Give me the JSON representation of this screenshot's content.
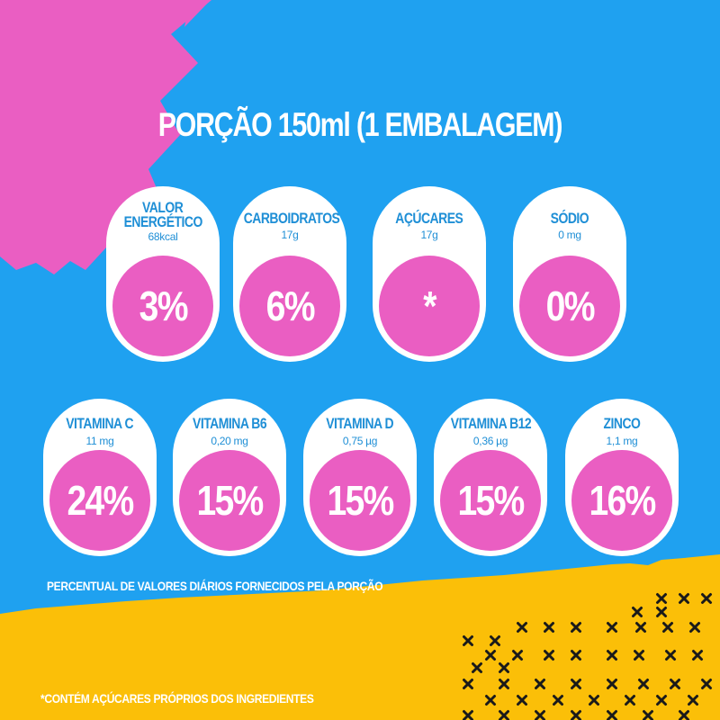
{
  "title": "PORÇÃO 150ml (1 EMBALAGEM)",
  "row1": [
    {
      "name_line1": "VALOR",
      "name_line2": "ENERGÉTICO",
      "amount": "68kcal",
      "percent": "3%"
    },
    {
      "name_line1": "CARBOIDRATOS",
      "name_line2": "",
      "amount": "17g",
      "percent": "6%"
    },
    {
      "name_line1": "AÇÚCARES",
      "name_line2": "",
      "amount": "17g",
      "percent": "*"
    },
    {
      "name_line1": "SÓDIO",
      "name_line2": "",
      "amount": "0 mg",
      "percent": "0%"
    }
  ],
  "row2": [
    {
      "name": "VITAMINA C",
      "amount": "11 mg",
      "percent": "24%"
    },
    {
      "name": "VITAMINA B6",
      "amount": "0,20 mg",
      "percent": "15%"
    },
    {
      "name": "VITAMINA D",
      "amount": "0,75 µg",
      "percent": "15%"
    },
    {
      "name": "VITAMINA B12",
      "amount": "0,36 µg",
      "percent": "15%"
    },
    {
      "name": "ZINCO",
      "amount": "1,1 mg",
      "percent": "16%"
    }
  ],
  "footnote_daily_values": "PERCENTUAL DE VALORES DIÁRIOS FORNECIDOS PELA PORÇÃO",
  "footnote_sugars": "*CONTÉM AÇÚCARES PRÓPRIOS DOS INGREDIENTES",
  "colors": {
    "background": "#1fa1f0",
    "accent_pink": "#ea5ec2",
    "accent_yellow": "#fbbf08",
    "card": "#ffffff",
    "label_blue": "#1f8fd6"
  }
}
